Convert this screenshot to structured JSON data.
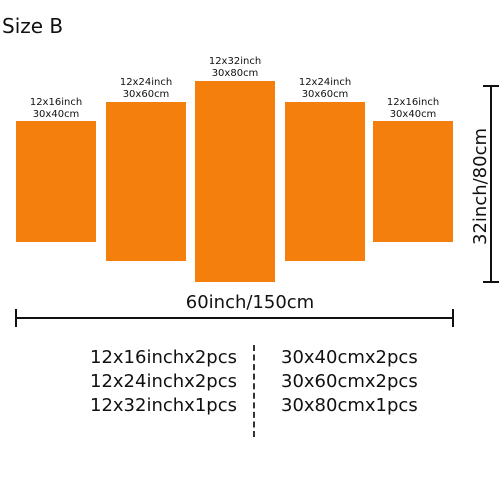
{
  "title": "Size B",
  "panels": [
    {
      "inch": "12x16inch",
      "cm": "30x40cm"
    },
    {
      "inch": "12x24inch",
      "cm": "30x60cm"
    },
    {
      "inch": "12x32inch",
      "cm": "30x80cm"
    },
    {
      "inch": "12x24inch",
      "cm": "30x60cm"
    },
    {
      "inch": "12x16inch",
      "cm": "30x40cm"
    }
  ],
  "panel_color": "#f57f0c",
  "width_label": "60inch/150cm",
  "height_label": "32inch/80cm",
  "inch_list": [
    "12x16inchx2pcs",
    "12x24inchx2pcs",
    "12x32inchx1pcs"
  ],
  "cm_list": [
    "30x40cmx2pcs",
    "30x60cmx2pcs",
    "30x80cmx1pcs"
  ]
}
